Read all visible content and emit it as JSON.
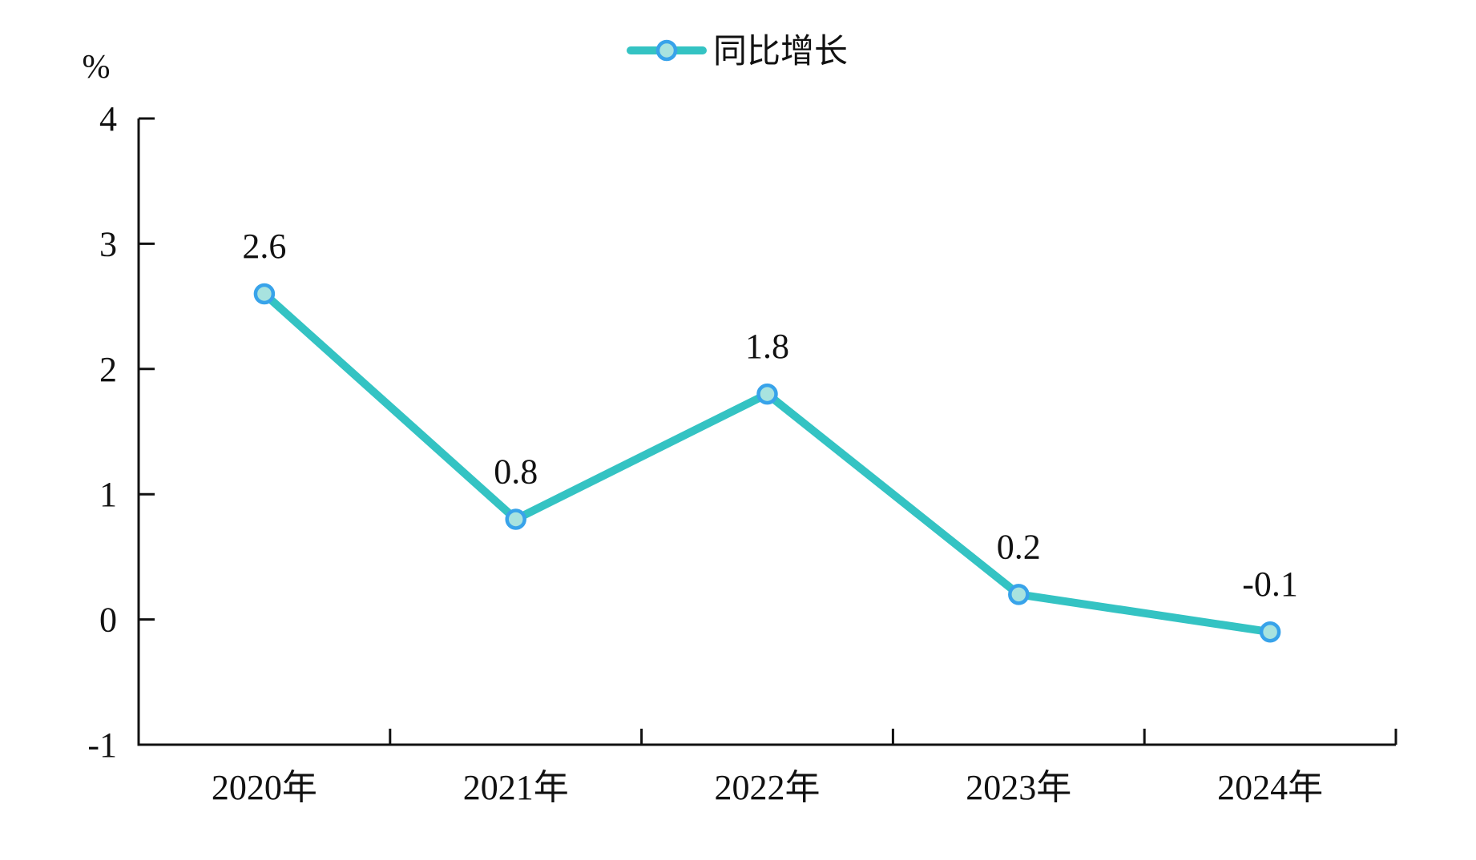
{
  "chart_data": {
    "type": "line",
    "title": "",
    "unit_label": "%",
    "categories": [
      "2020年",
      "2021年",
      "2022年",
      "2023年",
      "2024年"
    ],
    "series": [
      {
        "name": "同比增长",
        "values": [
          2.6,
          0.8,
          1.8,
          0.2,
          -0.1
        ],
        "point_labels": [
          "2.6",
          "0.8",
          "1.8",
          "0.2",
          "-0.1"
        ]
      }
    ],
    "ylim": [
      -1,
      4
    ],
    "yticks": [
      4,
      3,
      2,
      1,
      0,
      -1
    ],
    "grid": false,
    "legend_position": "top-center",
    "colors": {
      "line": "#34C3C3",
      "marker_fill": "#A8E3DF",
      "marker_stroke": "#38A3EA",
      "axis": "#111111",
      "text": "#111111"
    }
  }
}
